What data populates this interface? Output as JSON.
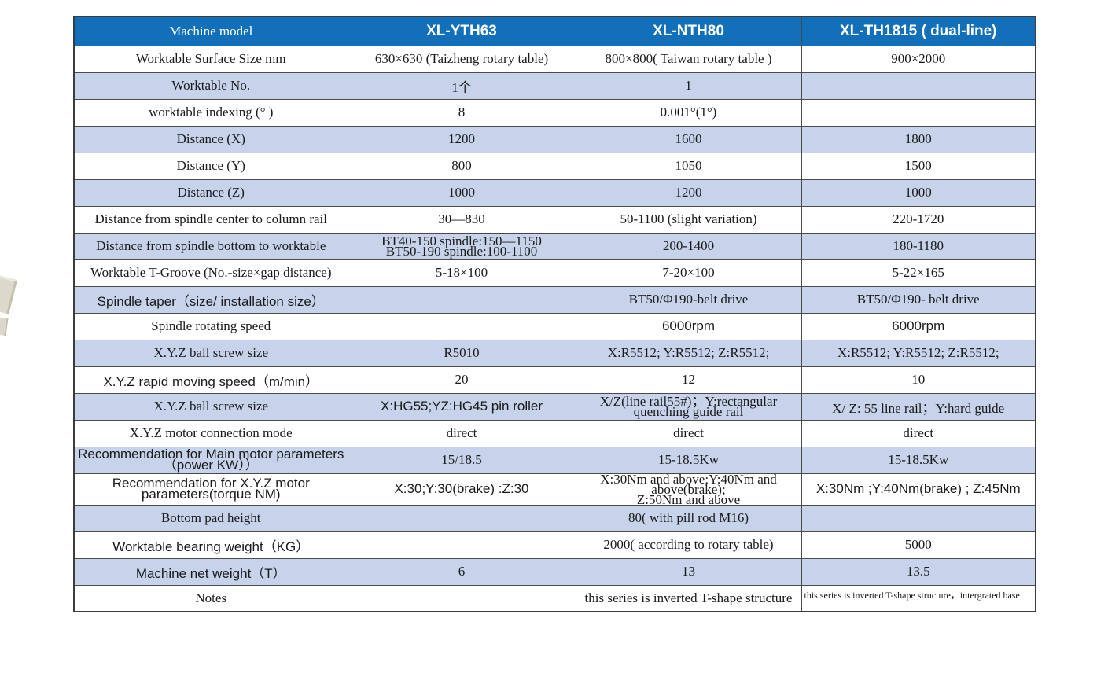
{
  "colors": {
    "header_bg": "#1170b9",
    "header_text": "#ffffff",
    "row_bg": "#ffffff",
    "row_alt_bg": "#c6d3eb",
    "border": "#4a4a4a",
    "photo_fragment": "#dcd9ca"
  },
  "table": {
    "columns": [
      {
        "label": "Machine model",
        "class": "serif-head"
      },
      {
        "label": "XL-YTH63",
        "class": "model-head"
      },
      {
        "label": "XL-NTH80",
        "class": "model-head"
      },
      {
        "label": "XL-TH1815 ( dual-line)",
        "class": "model-head"
      }
    ],
    "rows": [
      {
        "label": "Worktable Surface Size mm",
        "lc": "",
        "cells": [
          {
            "t": "630×630 (Taizheng rotary table)"
          },
          {
            "t": "800×800( Taiwan rotary table )"
          },
          {
            "t": "900×2000"
          }
        ]
      },
      {
        "label": "Worktable No.",
        "lc": "",
        "cells": [
          {
            "t": "1个"
          },
          {
            "t": "1"
          },
          {
            "t": ""
          }
        ]
      },
      {
        "label": "worktable indexing (° )",
        "lc": "",
        "cells": [
          {
            "t": "8"
          },
          {
            "t": "0.001°(1°)"
          },
          {
            "t": ""
          }
        ]
      },
      {
        "label": "Distance (X)",
        "lc": "",
        "cells": [
          {
            "t": "1200"
          },
          {
            "t": "1600"
          },
          {
            "t": "1800"
          }
        ]
      },
      {
        "label": "Distance (Y)",
        "lc": "",
        "cells": [
          {
            "t": "800"
          },
          {
            "t": "1050"
          },
          {
            "t": "1500"
          }
        ]
      },
      {
        "label": "Distance (Z)",
        "lc": "",
        "cells": [
          {
            "t": "1000"
          },
          {
            "t": "1200"
          },
          {
            "t": "1000"
          }
        ]
      },
      {
        "label": "Distance from spindle center to column rail",
        "lc": "",
        "cells": [
          {
            "t": "30—830"
          },
          {
            "t": "50-1100 (slight variation)"
          },
          {
            "t": "220-1720"
          }
        ]
      },
      {
        "label": "Distance from spindle bottom to worktable",
        "lc": "",
        "cells": [
          {
            "t": "BT40-150 spindle:150—1150\nBT50-190 spindle:100-1100",
            "c": "small"
          },
          {
            "t": "200-1400"
          },
          {
            "t": "180-1180"
          }
        ]
      },
      {
        "label": "Worktable T-Groove (No.-size×gap distance)",
        "lc": "",
        "cells": [
          {
            "t": "5-18×100"
          },
          {
            "t": "7-20×100"
          },
          {
            "t": "5-22×165"
          }
        ]
      },
      {
        "label": "Spindle taper（size/ installation size）",
        "lc": "sans",
        "cells": [
          {
            "t": ""
          },
          {
            "t": "BT50/Φ190-belt drive"
          },
          {
            "t": "BT50/Φ190- belt drive"
          }
        ]
      },
      {
        "label": "Spindle rotating speed",
        "lc": "",
        "cells": [
          {
            "t": ""
          },
          {
            "t": "6000rpm",
            "c": "sans"
          },
          {
            "t": "6000rpm",
            "c": "sans"
          }
        ]
      },
      {
        "label": "X.Y.Z ball screw size",
        "lc": "",
        "cells": [
          {
            "t": "R5010"
          },
          {
            "t": "X:R5512;  Y:R5512;  Z:R5512;"
          },
          {
            "t": "X:R5512;  Y:R5512;  Z:R5512;"
          }
        ]
      },
      {
        "label": "X.Y.Z rapid moving speed（m/min）",
        "lc": "sans",
        "cells": [
          {
            "t": "20"
          },
          {
            "t": "12"
          },
          {
            "t": "10"
          }
        ]
      },
      {
        "label": "X.Y.Z ball screw size",
        "lc": "",
        "cells": [
          {
            "t": "X:HG55;YZ:HG45 pin roller",
            "c": "sans"
          },
          {
            "t": "X/Z(line rail55#)；Y:rectangular quenching guide rail",
            "c": "small"
          },
          {
            "t": "X/ Z: 55 line rail；Y:hard guide"
          }
        ]
      },
      {
        "label": "X.Y.Z motor connection mode",
        "lc": "",
        "cells": [
          {
            "t": "direct"
          },
          {
            "t": "direct"
          },
          {
            "t": "direct"
          }
        ]
      },
      {
        "label": "Recommendation for Main motor parameters（power KW））",
        "lc": "sans sm13",
        "cells": [
          {
            "t": "15/18.5"
          },
          {
            "t": "15-18.5Kw"
          },
          {
            "t": "15-18.5Kw"
          }
        ]
      },
      {
        "label": "Recommendation for X.Y.Z motor parameters(torque NM)",
        "lc": "sans sm13",
        "cells": [
          {
            "t": "X:30;Y:30(brake) :Z:30",
            "c": "sans"
          },
          {
            "t": "X:30Nm and above;Y:40Nm and above(brake);\nZ:50Nm and above",
            "c": "small"
          },
          {
            "t": "X:30Nm ;Y:40Nm(brake) ; Z:45Nm",
            "c": "sans"
          }
        ]
      },
      {
        "label": "Bottom pad height",
        "lc": "",
        "cells": [
          {
            "t": ""
          },
          {
            "t": "80( with pill rod M16)"
          },
          {
            "t": ""
          }
        ]
      },
      {
        "label": "Worktable bearing weight（KG）",
        "lc": "sans",
        "cells": [
          {
            "t": ""
          },
          {
            "t": "2000( according to rotary table)"
          },
          {
            "t": "5000"
          }
        ]
      },
      {
        "label": "Machine net weight（T）",
        "lc": "sans",
        "cells": [
          {
            "t": "6"
          },
          {
            "t": "13"
          },
          {
            "t": "13.5"
          }
        ]
      },
      {
        "label": "Notes",
        "lc": "",
        "cells": [
          {
            "t": ""
          },
          {
            "t": "this series is inverted T-shape structure"
          },
          {
            "t": "this series is inverted T-shape structure，intergrated base",
            "c": "spill"
          }
        ]
      }
    ]
  }
}
